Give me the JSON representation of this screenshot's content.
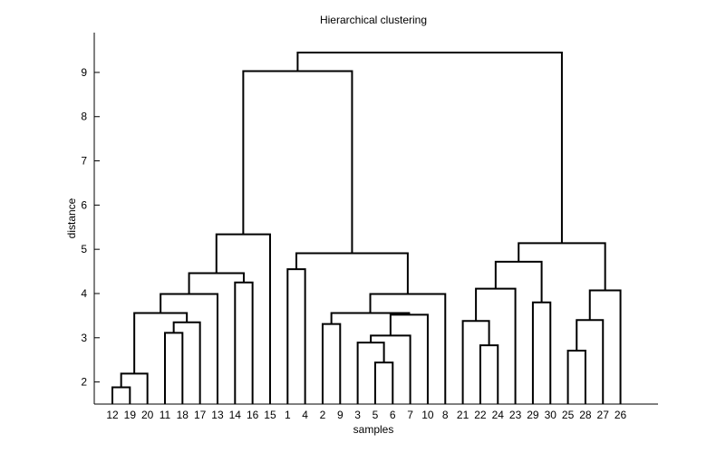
{
  "chart_data": {
    "type": "dendrogram",
    "title": "Hierarchical clustering",
    "xlabel": "samples",
    "ylabel": "distance",
    "ylim": [
      1.5,
      9.9
    ],
    "yticks": [
      "2",
      "3",
      "4",
      "5",
      "6",
      "7",
      "8",
      "9"
    ],
    "grid": false,
    "leaf_order": [
      "12",
      "19",
      "20",
      "11",
      "18",
      "17",
      "13",
      "14",
      "16",
      "15",
      "1",
      "4",
      "2",
      "9",
      "3",
      "5",
      "6",
      "7",
      "10",
      "8",
      "21",
      "22",
      "24",
      "23",
      "29",
      "30",
      "25",
      "28",
      "27",
      "26"
    ],
    "merges": [
      {
        "left": "12",
        "right": "19",
        "height": 1.88
      },
      {
        "left": "12,19",
        "right": "20",
        "height": 2.19
      },
      {
        "left": "11",
        "right": "18",
        "height": 3.11
      },
      {
        "left": "11,18",
        "right": "17",
        "height": 3.35
      },
      {
        "left": "12,19,20",
        "right": "11,18,17",
        "height": 3.56
      },
      {
        "left": "12,19,20,11,18,17",
        "right": "13",
        "height": 3.99
      },
      {
        "left": "14",
        "right": "16",
        "height": 4.25
      },
      {
        "left": "12,...,13",
        "right": "14,16",
        "height": 4.46
      },
      {
        "left": "12,...,16",
        "right": "15",
        "height": 5.34
      },
      {
        "left": "1",
        "right": "4",
        "height": 4.55
      },
      {
        "left": "2",
        "right": "9",
        "height": 3.31
      },
      {
        "left": "5",
        "right": "6",
        "height": 2.44
      },
      {
        "left": "3",
        "right": "5,6",
        "height": 2.89
      },
      {
        "left": "3,5,6",
        "right": "7",
        "height": 3.05
      },
      {
        "left": "3,5,6,7",
        "right": "10",
        "height": 3.52
      },
      {
        "left": "2,9",
        "right": "3,5,6,7,10",
        "height": 3.56
      },
      {
        "left": "2,...,10",
        "right": "8",
        "height": 3.99
      },
      {
        "left": "1,4",
        "right": "2,...,8",
        "height": 4.91
      },
      {
        "left": "12,...,15",
        "right": "1,...,8",
        "height": 9.03
      },
      {
        "left": "22",
        "right": "24",
        "height": 2.83
      },
      {
        "left": "21",
        "right": "22,24",
        "height": 3.38
      },
      {
        "left": "21,22,24",
        "right": "23",
        "height": 4.11
      },
      {
        "left": "29",
        "right": "30",
        "height": 3.8
      },
      {
        "left": "21,...,23",
        "right": "29,30",
        "height": 4.72
      },
      {
        "left": "25",
        "right": "28",
        "height": 2.71
      },
      {
        "left": "25,28",
        "right": "27",
        "height": 3.4
      },
      {
        "left": "25,28,27",
        "right": "26",
        "height": 4.07
      },
      {
        "left": "21,...,30",
        "right": "25,...,26",
        "height": 5.14
      },
      {
        "left": "12,...,8",
        "right": "21,...,26",
        "height": 9.45
      }
    ]
  }
}
